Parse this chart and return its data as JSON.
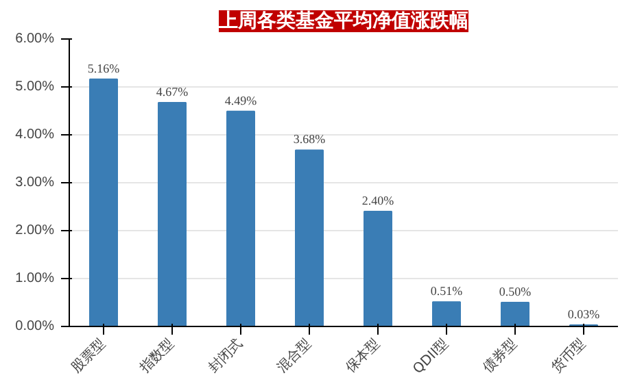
{
  "chart_data": {
    "type": "bar",
    "title": "上周各类基金平均净值涨跌幅",
    "categories": [
      "股票型",
      "指数型",
      "封闭式",
      "混合型",
      "保本型",
      "QDII型",
      "债券型",
      "货币型"
    ],
    "values": [
      5.16,
      4.67,
      4.49,
      3.68,
      2.4,
      0.51,
      0.5,
      0.03
    ],
    "value_labels": [
      "5.16%",
      "4.67%",
      "4.49%",
      "3.68%",
      "2.40%",
      "0.51%",
      "0.50%",
      "0.03%"
    ],
    "color": "#3a7db5",
    "ylim": [
      0,
      6
    ],
    "yticks": [
      {
        "value": 0,
        "label": "0.00%"
      },
      {
        "value": 1,
        "label": "1.00%"
      },
      {
        "value": 2,
        "label": "2.00%"
      },
      {
        "value": 3,
        "label": "3.00%"
      },
      {
        "value": 4,
        "label": "4.00%"
      },
      {
        "value": 5,
        "label": "5.00%"
      },
      {
        "value": 6,
        "label": "6.00%"
      }
    ],
    "grid": "y"
  }
}
